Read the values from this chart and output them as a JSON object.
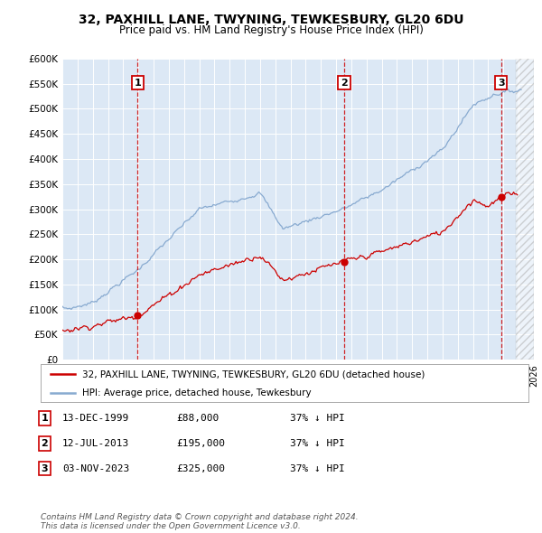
{
  "title": "32, PAXHILL LANE, TWYNING, TEWKESBURY, GL20 6DU",
  "subtitle": "Price paid vs. HM Land Registry's House Price Index (HPI)",
  "yticks": [
    0,
    50000,
    100000,
    150000,
    200000,
    250000,
    300000,
    350000,
    400000,
    450000,
    500000,
    550000,
    600000
  ],
  "ytick_labels": [
    "£0",
    "£50K",
    "£100K",
    "£150K",
    "£200K",
    "£250K",
    "£300K",
    "£350K",
    "£400K",
    "£450K",
    "£500K",
    "£550K",
    "£600K"
  ],
  "xlim_start": 1995.0,
  "xlim_end": 2026.0,
  "ylim_min": 0,
  "ylim_max": 600000,
  "transactions": [
    {
      "date_label": "1",
      "year": 1999.95,
      "price": 88000
    },
    {
      "date_label": "2",
      "year": 2013.53,
      "price": 195000
    },
    {
      "date_label": "3",
      "year": 2023.84,
      "price": 325000
    }
  ],
  "line_color_red": "#cc0000",
  "hpi_color": "#88aad0",
  "vline_color": "#cc0000",
  "plot_bg": "#dce8f5",
  "legend_label_red": "32, PAXHILL LANE, TWYNING, TEWKESBURY, GL20 6DU (detached house)",
  "legend_label_blue": "HPI: Average price, detached house, Tewkesbury",
  "table_rows": [
    [
      "1",
      "13-DEC-1999",
      "£88,000",
      "37% ↓ HPI"
    ],
    [
      "2",
      "12-JUL-2013",
      "£195,000",
      "37% ↓ HPI"
    ],
    [
      "3",
      "03-NOV-2023",
      "£325,000",
      "37% ↓ HPI"
    ]
  ],
  "footer": "Contains HM Land Registry data © Crown copyright and database right 2024.\nThis data is licensed under the Open Government Licence v3.0.",
  "hatch_start": 2024.84,
  "hatch_end": 2026.0
}
